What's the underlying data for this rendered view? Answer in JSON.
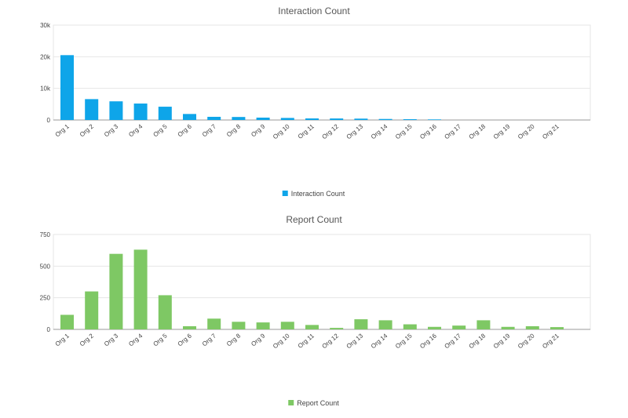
{
  "chart_data": [
    {
      "type": "bar",
      "title": "Interaction Count",
      "categories": [
        "Org 1",
        "Org 2",
        "Org 3",
        "Org 4",
        "Org 5",
        "Org 6",
        "Org 7",
        "Org 8",
        "Org 9",
        "Org 10",
        "Org 11",
        "Org 12",
        "Org 13",
        "Org 14",
        "Org 15",
        "Org 16",
        "Org 17",
        "Org 18",
        "Org 19",
        "Org 20",
        "Org 21"
      ],
      "series": [
        {
          "name": "Interaction Count",
          "color": "#0ea5e9",
          "values": [
            20500,
            6600,
            5900,
            5200,
            4200,
            1900,
            1000,
            950,
            750,
            650,
            500,
            480,
            430,
            320,
            250,
            180,
            0,
            0,
            0,
            0,
            0
          ]
        }
      ],
      "ylim": [
        0,
        30000
      ],
      "yticks": [
        "0",
        "10k",
        "20k",
        "30k"
      ],
      "ytick_values": [
        0,
        10000,
        20000,
        30000
      ],
      "grid": true,
      "legend": "bottom-center"
    },
    {
      "type": "bar",
      "title": "Report Count",
      "categories": [
        "Org 1",
        "Org 2",
        "Org 3",
        "Org 4",
        "Org 5",
        "Org 6",
        "Org 7",
        "Org 8",
        "Org 9",
        "Org 10",
        "Org 11",
        "Org 12",
        "Org 13",
        "Org 14",
        "Org 15",
        "Org 16",
        "Org 17",
        "Org 18",
        "Org 19",
        "Org 20",
        "Org 21"
      ],
      "series": [
        {
          "name": "Report Count",
          "color": "#7ec864",
          "values": [
            115,
            300,
            597,
            630,
            270,
            25,
            85,
            60,
            55,
            60,
            35,
            12,
            80,
            72,
            40,
            20,
            30,
            72,
            20,
            25,
            18
          ]
        }
      ],
      "ylim": [
        0,
        750
      ],
      "yticks": [
        "0",
        "250",
        "500",
        "750"
      ],
      "ytick_values": [
        0,
        250,
        500,
        750
      ],
      "grid": true,
      "legend": "bottom-center"
    }
  ]
}
